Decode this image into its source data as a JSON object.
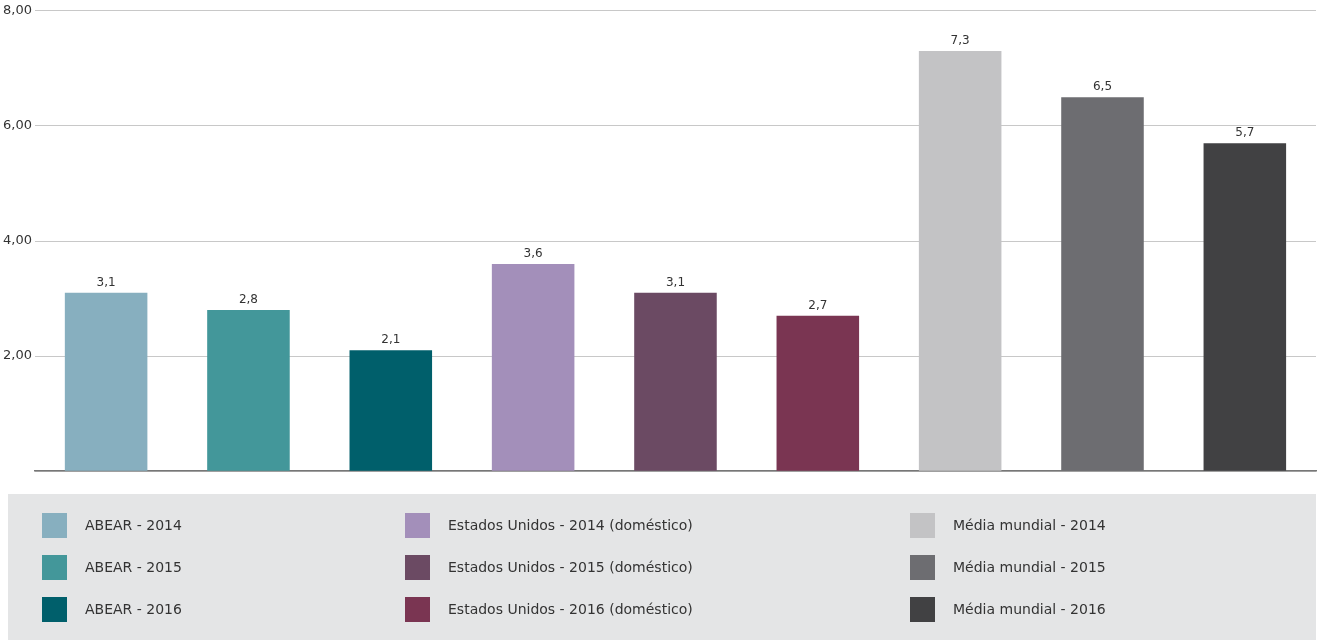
{
  "chart_data": {
    "type": "bar",
    "categories": [
      null,
      null,
      null,
      null,
      null,
      null,
      null,
      null,
      null
    ],
    "series": [
      {
        "name": "ABEAR - 2014",
        "color": "#87afbf",
        "values": [
          3.1,
          null,
          null,
          null,
          null,
          null,
          null,
          null,
          null
        ],
        "value_labels": [
          "3,1",
          null,
          null,
          null,
          null,
          null,
          null,
          null,
          null
        ]
      },
      {
        "name": "ABEAR - 2015",
        "color": "#43979a",
        "values": [
          null,
          2.8,
          null,
          null,
          null,
          null,
          null,
          null,
          null
        ],
        "value_labels": [
          null,
          "2,8",
          null,
          null,
          null,
          null,
          null,
          null,
          null
        ]
      },
      {
        "name": "ABEAR - 2016",
        "color": "#005f6b",
        "values": [
          null,
          null,
          2.1,
          null,
          null,
          null,
          null,
          null,
          null
        ],
        "value_labels": [
          null,
          null,
          "2,1",
          null,
          null,
          null,
          null,
          null,
          null
        ]
      },
      {
        "name": "Estados Unidos - 2014 (doméstico)",
        "color": "#a38fba",
        "values": [
          null,
          null,
          null,
          3.6,
          null,
          null,
          null,
          null,
          null
        ],
        "value_labels": [
          null,
          null,
          null,
          "3,6",
          null,
          null,
          null,
          null,
          null
        ]
      },
      {
        "name": "Estados Unidos - 2015 (doméstico)",
        "color": "#6b4a63",
        "values": [
          null,
          null,
          null,
          null,
          3.1,
          null,
          null,
          null,
          null
        ],
        "value_labels": [
          null,
          null,
          null,
          null,
          "3,1",
          null,
          null,
          null,
          null
        ]
      },
      {
        "name": "Estados Unidos - 2016 (doméstico)",
        "color": "#7a3552",
        "values": [
          null,
          null,
          null,
          null,
          null,
          2.7,
          null,
          null,
          null
        ],
        "value_labels": [
          null,
          null,
          null,
          null,
          null,
          "2,7",
          null,
          null,
          null
        ]
      },
      {
        "name": "Média mundial - 2014",
        "color": "#c3c3c5",
        "values": [
          null,
          null,
          null,
          null,
          null,
          null,
          7.3,
          null,
          null
        ],
        "value_labels": [
          null,
          null,
          null,
          null,
          null,
          null,
          "7,3",
          null,
          null
        ]
      },
      {
        "name": "Média mundial - 2015",
        "color": "#6d6d71",
        "values": [
          null,
          null,
          null,
          null,
          null,
          null,
          null,
          6.5,
          null
        ],
        "value_labels": [
          null,
          null,
          null,
          null,
          null,
          null,
          null,
          "6,5",
          null
        ]
      },
      {
        "name": "Média mundial - 2016",
        "color": "#414143",
        "values": [
          null,
          null,
          null,
          null,
          null,
          null,
          null,
          null,
          5.7
        ],
        "value_labels": [
          null,
          null,
          null,
          null,
          null,
          null,
          null,
          null,
          "5,7"
        ]
      }
    ],
    "ylim": [
      0,
      8
    ],
    "yticks": [
      {
        "value": 0,
        "label": null
      },
      {
        "value": 2,
        "label": "2,00"
      },
      {
        "value": 4,
        "label": "4,00"
      },
      {
        "value": 6,
        "label": "6,00"
      },
      {
        "value": 8,
        "label": "8,00"
      }
    ],
    "grid": "y",
    "legend": "bottom",
    "tick_labels": "y"
  }
}
